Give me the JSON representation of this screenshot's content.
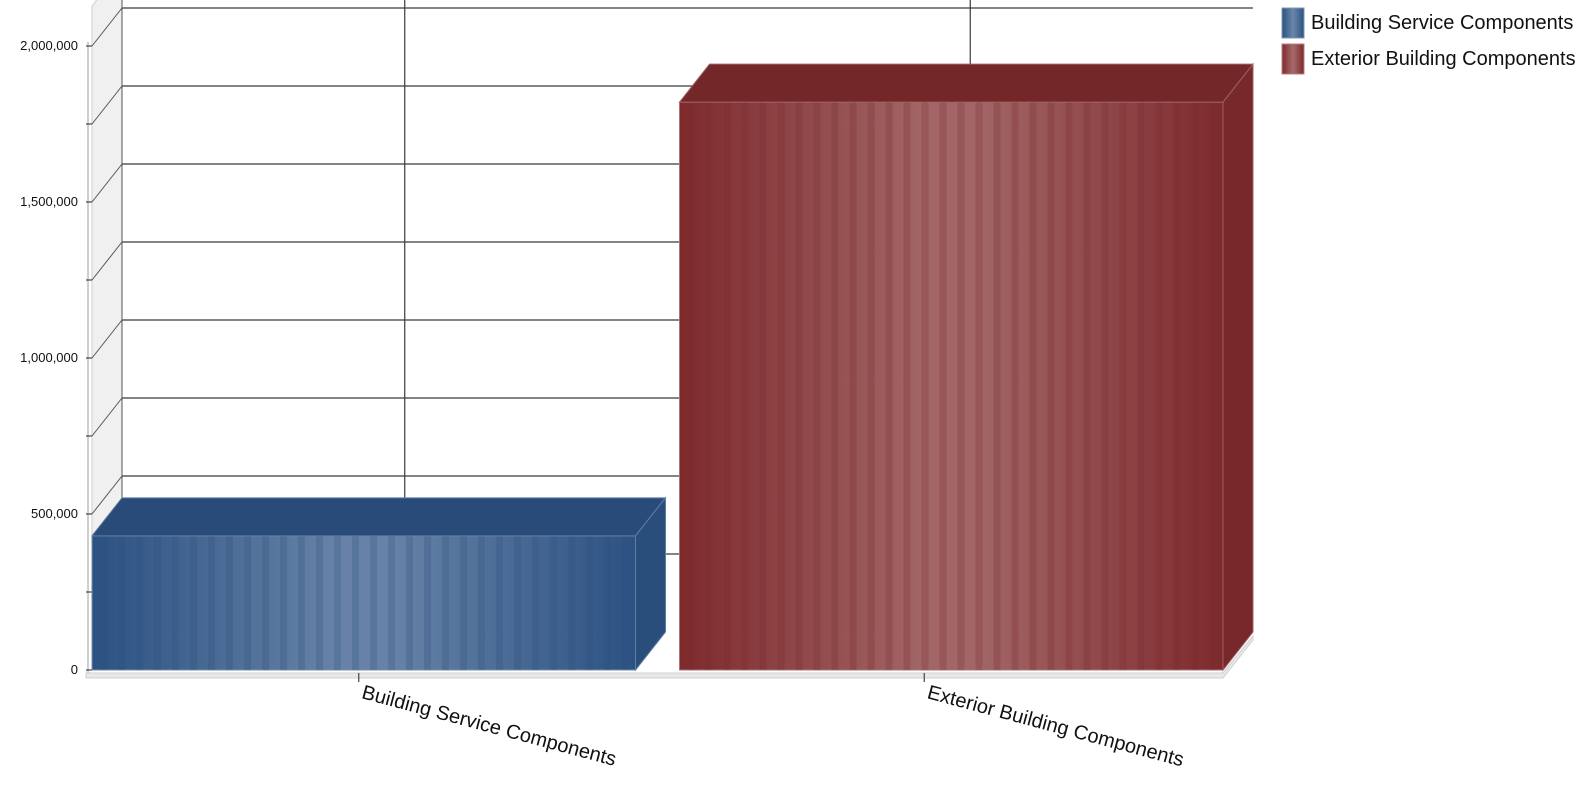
{
  "chart_data": {
    "type": "bar",
    "categories": [
      "Building Service Components",
      "Exterior Building Components"
    ],
    "series": [
      {
        "name": "Building Service Components",
        "values": [
          430000,
          null
        ],
        "color": "#2c5283"
      },
      {
        "name": "Exterior Building Components",
        "values": [
          null,
          1820000
        ],
        "color": "#7e2a2c"
      }
    ],
    "y_ticks": [
      {
        "value": 0,
        "label": "0"
      },
      {
        "value": 500000,
        "label": "500,000"
      },
      {
        "value": 1000000,
        "label": "1,000,000"
      },
      {
        "value": 1500000,
        "label": "1,500,000"
      },
      {
        "value": 2000000,
        "label": "2,000,000"
      }
    ],
    "ylim": [
      0,
      2000000
    ],
    "title": "",
    "xlabel": "",
    "ylabel": "",
    "grid": true,
    "legend_position": "top-right",
    "style": "3d-bar"
  }
}
